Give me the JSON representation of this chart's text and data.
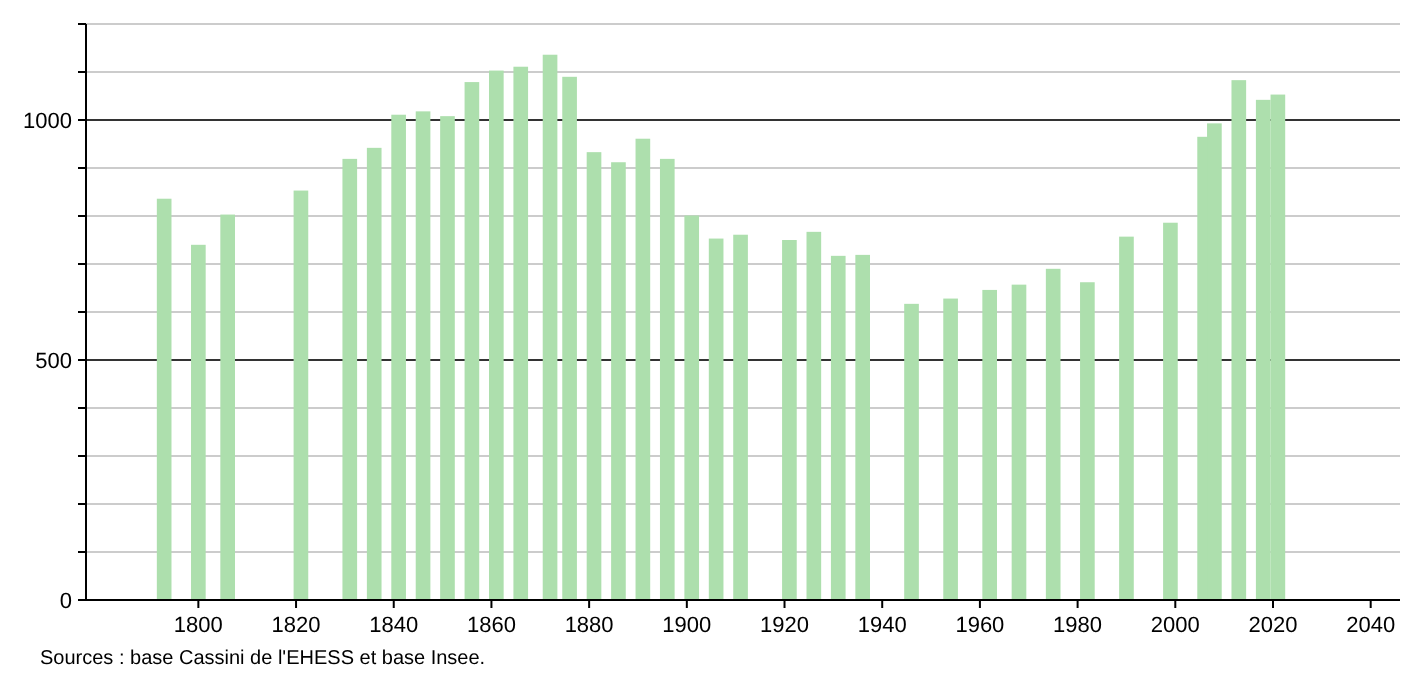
{
  "chart_data": {
    "type": "bar",
    "color": "#addfad",
    "x": [
      1793,
      1800,
      1806,
      1821,
      1831,
      1836,
      1841,
      1846,
      1851,
      1856,
      1861,
      1866,
      1872,
      1876,
      1881,
      1886,
      1891,
      1896,
      1901,
      1906,
      1911,
      1921,
      1926,
      1931,
      1936,
      1946,
      1954,
      1962,
      1968,
      1975,
      1982,
      1990,
      1999,
      2006,
      2008,
      2013,
      2018,
      2021
    ],
    "values": [
      836,
      740,
      803,
      853,
      919,
      942,
      1011,
      1018,
      1008,
      1079,
      1103,
      1111,
      1136,
      1090,
      933,
      912,
      961,
      919,
      801,
      753,
      761,
      750,
      767,
      717,
      719,
      617,
      628,
      646,
      657,
      690,
      662,
      757,
      786,
      965,
      993,
      1083,
      1042,
      1053
    ],
    "xlim": [
      1777,
      2046
    ],
    "xticks": [
      1800,
      1820,
      1840,
      1860,
      1880,
      1900,
      1920,
      1940,
      1960,
      1980,
      2000,
      2020,
      2040
    ],
    "ylim": [
      0,
      1200
    ],
    "yticks": [
      0,
      {
        "value": 100,
        "label": null
      },
      {
        "value": 200,
        "label": null
      },
      {
        "value": 300,
        "label": null
      },
      {
        "value": 400,
        "label": null
      },
      500,
      {
        "value": 600,
        "label": null
      },
      {
        "value": 700,
        "label": null
      },
      {
        "value": 800,
        "label": null
      },
      {
        "value": 900,
        "label": null
      },
      1000,
      {
        "value": 1100,
        "label": null
      },
      {
        "value": 1200,
        "label": null
      }
    ],
    "grid": "y",
    "annotations": [
      "Sources : base Cassini de l'EHESS et base Insee."
    ]
  }
}
